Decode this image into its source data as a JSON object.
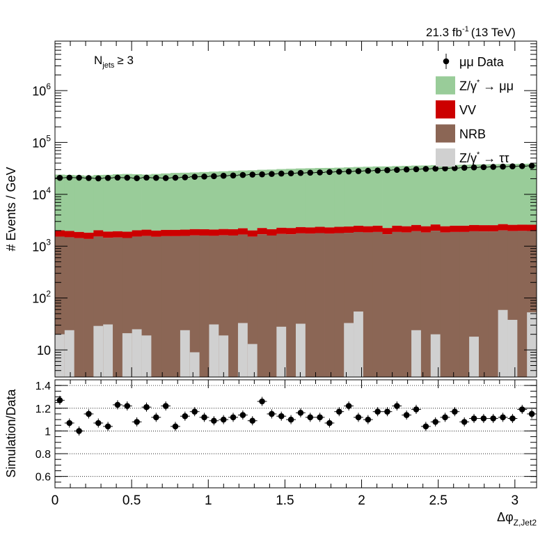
{
  "lumi_label": "21.3 fb",
  "lumi_exp": "-1",
  "lumi_energy": "(13 TeV)",
  "cut_label": {
    "main": "N",
    "sub": "jets",
    "rel": "≥ 3"
  },
  "colors": {
    "zmumu": "#99cc99",
    "vv": "#cc0000",
    "nrb": "#8b6655",
    "ztautau": "#d0d0d0",
    "data": "#000000"
  },
  "chart_data": [
    {
      "type": "bar",
      "stacked": true,
      "ylabel": "# Events / GeV",
      "yscale": "log",
      "ylim": [
        3,
        9000000
      ],
      "xlim": [
        0,
        3.1416
      ],
      "ytick_labels": [
        {
          "v": 10,
          "base": "10",
          "exp": ""
        },
        {
          "v": 100,
          "base": "10",
          "exp": "2"
        },
        {
          "v": 1000,
          "base": "10",
          "exp": "3"
        },
        {
          "v": 10000,
          "base": "10",
          "exp": "4"
        },
        {
          "v": 100000,
          "base": "10",
          "exp": "5"
        },
        {
          "v": 1000000,
          "base": "10",
          "exp": "6"
        }
      ],
      "n_bins": 50,
      "legend": [
        {
          "key": "data",
          "label": "μμ Data",
          "style": "marker"
        },
        {
          "key": "zmumu",
          "label": "Z/γ",
          "sup": "*",
          "after": " → μμ",
          "style": "box"
        },
        {
          "key": "vv",
          "label": "VV",
          "style": "box"
        },
        {
          "key": "nrb",
          "label": "NRB",
          "style": "box"
        },
        {
          "key": "ztautau",
          "label": "Z/γ",
          "sup": "*",
          "after": " → ττ",
          "style": "box"
        }
      ],
      "legend_position": "top-right",
      "series": {
        "ztautau": [
          20,
          24,
          0,
          0,
          29,
          31,
          0,
          21,
          25,
          19,
          0,
          0,
          0,
          24,
          9,
          0,
          31,
          19,
          0,
          33,
          13,
          0,
          0,
          28,
          0,
          32,
          0,
          0,
          0,
          0,
          33,
          55,
          0,
          0,
          0,
          0,
          0,
          24,
          0,
          20,
          0,
          0,
          0,
          18,
          0,
          0,
          59,
          38,
          0,
          53
        ],
        "nrb": [
          1600,
          1550,
          1500,
          1450,
          1600,
          1500,
          1550,
          1500,
          1600,
          1650,
          1600,
          1650,
          1650,
          1650,
          1700,
          1700,
          1650,
          1700,
          1700,
          1750,
          1600,
          1800,
          1700,
          1800,
          1800,
          1850,
          1850,
          1900,
          1850,
          1900,
          1900,
          1950,
          1950,
          2000,
          1800,
          2000,
          1950,
          2050,
          1950,
          2100,
          1950,
          2000,
          2000,
          2050,
          2050,
          2050,
          2100,
          2050,
          2100,
          2050
        ],
        "vv": [
          400,
          390,
          380,
          370,
          400,
          380,
          390,
          380,
          400,
          410,
          400,
          410,
          410,
          410,
          420,
          420,
          410,
          420,
          420,
          430,
          400,
          440,
          420,
          440,
          440,
          450,
          450,
          460,
          450,
          460,
          460,
          470,
          470,
          480,
          440,
          480,
          470,
          490,
          470,
          500,
          470,
          480,
          480,
          490,
          490,
          490,
          500,
          490,
          500,
          490
        ],
        "zmumu": [
          22000,
          21700,
          21400,
          21000,
          21600,
          21900,
          22500,
          22800,
          22400,
          22000,
          22700,
          23200,
          23800,
          24000,
          24300,
          24800,
          25300,
          25700,
          26200,
          26600,
          27100,
          27500,
          27900,
          28400,
          28800,
          29200,
          29500,
          29800,
          30000,
          30300,
          30800,
          31200,
          31600,
          32000,
          32300,
          32600,
          33000,
          33300,
          33600,
          34000,
          34200,
          34500,
          34800,
          35100,
          35300,
          35600,
          35800,
          36000,
          36200,
          36400
        ],
        "data": [
          20800,
          21000,
          20900,
          20600,
          20300,
          20700,
          21000,
          20900,
          20500,
          21000,
          20800,
          20600,
          20900,
          21300,
          21800,
          22000,
          22400,
          22800,
          23100,
          23600,
          24000,
          24300,
          24700,
          25100,
          25400,
          25800,
          26100,
          26400,
          26900,
          27300,
          27600,
          28000,
          28400,
          28800,
          29200,
          29600,
          30100,
          30500,
          30900,
          31300,
          31700,
          32100,
          32600,
          33000,
          33400,
          33800,
          34200,
          34600,
          35000,
          35400
        ]
      }
    },
    {
      "type": "scatter",
      "xlabel": "Δφ",
      "xlabel_sub": "Z,Jet2",
      "ylabel": "Simulation/Data",
      "xlim": [
        0,
        3.1416
      ],
      "ylim": [
        0.5,
        1.45
      ],
      "x_ticks": [
        "0",
        "0.5",
        "1",
        "1.5",
        "2",
        "2.5",
        "3"
      ],
      "y_ticks": [
        "0.6",
        "0.8",
        "1",
        "1.2",
        "1.4"
      ],
      "grid": "horizontal dotted",
      "values": [
        1.27,
        1.07,
        1.0,
        1.15,
        1.07,
        1.04,
        1.23,
        1.22,
        1.08,
        1.21,
        1.12,
        1.22,
        1.04,
        1.13,
        1.17,
        1.12,
        1.09,
        1.1,
        1.12,
        1.14,
        1.09,
        1.26,
        1.15,
        1.13,
        1.1,
        1.16,
        1.12,
        1.12,
        1.07,
        1.17,
        1.22,
        1.12,
        1.1,
        1.17,
        1.17,
        1.22,
        1.14,
        1.19,
        1.04,
        1.08,
        1.12,
        1.17,
        1.08,
        1.11,
        1.11,
        1.11,
        1.12,
        1.11,
        1.19,
        1.15
      ],
      "errors": [
        0.04,
        0.04,
        0.04,
        0.04,
        0.04,
        0.04,
        0.04,
        0.04,
        0.04,
        0.04,
        0.04,
        0.04,
        0.04,
        0.04,
        0.04,
        0.04,
        0.04,
        0.04,
        0.04,
        0.04,
        0.04,
        0.04,
        0.04,
        0.04,
        0.04,
        0.04,
        0.04,
        0.04,
        0.04,
        0.04,
        0.04,
        0.04,
        0.04,
        0.04,
        0.04,
        0.04,
        0.04,
        0.04,
        0.04,
        0.04,
        0.04,
        0.04,
        0.04,
        0.04,
        0.04,
        0.04,
        0.04,
        0.04,
        0.04,
        0.04
      ]
    }
  ]
}
